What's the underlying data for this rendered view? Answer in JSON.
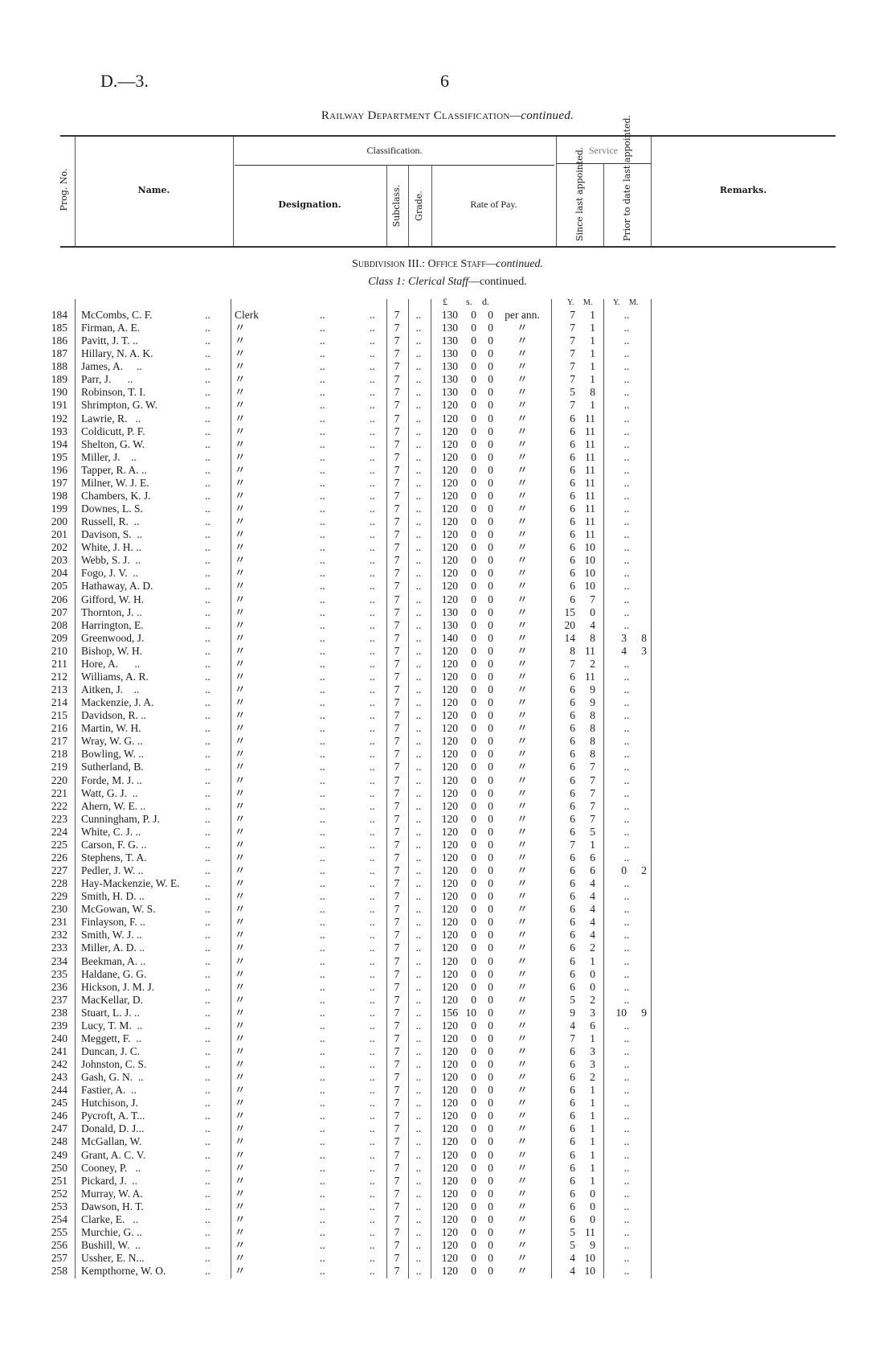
{
  "header": {
    "doc_ref": "D.—3.",
    "page_number": "6",
    "title_main": "Railway Department Classification",
    "title_suffix": "—continued."
  },
  "columns": {
    "prog_no": "Prog. No.",
    "name": "Name.",
    "classification": "Classification.",
    "designation": "Designation.",
    "subclass": "Subclass.",
    "grade": "Grade.",
    "rate_of_pay": "Rate of Pay.",
    "service": "Service",
    "since_last": "Since last appointed.",
    "prior_to_date": "Prior to date last appointed.",
    "remarks": "Remarks."
  },
  "section": {
    "subdivision": "Subdivision III.: Office Staff",
    "subdivision_suffix": "—continued.",
    "class_label": "Class 1: Clerical Staff",
    "class_suffix": "—continued."
  },
  "units": {
    "pounds": "£",
    "shillings": "s.",
    "pence": "d.",
    "years": "Y.",
    "months": "M.",
    "years2": "Y.",
    "months2": "M."
  },
  "row_fields": [
    "prog_no",
    "name",
    "designation",
    "subclass",
    "grade",
    "pounds",
    "shillings",
    "pence",
    "period",
    "since_y",
    "since_m",
    "prior_y",
    "prior_m"
  ],
  "rows": [
    [
      "184",
      "McCombs, C. F.",
      "Clerk",
      "7",
      "..",
      "130",
      "0",
      "0",
      "per ann.",
      "7",
      "1",
      "..",
      ""
    ],
    [
      "185",
      "Firman, A. E.",
      "〃",
      "7",
      "..",
      "130",
      "0",
      "0",
      "〃",
      "7",
      "1",
      "..",
      ""
    ],
    [
      "186",
      "Pavitt, J. T. ..",
      "〃",
      "7",
      "..",
      "130",
      "0",
      "0",
      "〃",
      "7",
      "1",
      "..",
      ""
    ],
    [
      "187",
      "Hillary, N. A. K.",
      "〃",
      "7",
      "..",
      "130",
      "0",
      "0",
      "〃",
      "7",
      "1",
      "..",
      ""
    ],
    [
      "188",
      "James, A.     ..",
      "〃",
      "7",
      "..",
      "130",
      "0",
      "0",
      "〃",
      "7",
      "1",
      "..",
      ""
    ],
    [
      "189",
      "Parr, J.      ..",
      "〃",
      "7",
      "..",
      "130",
      "0",
      "0",
      "〃",
      "7",
      "1",
      "..",
      ""
    ],
    [
      "190",
      "Robinson, T. I.",
      "〃",
      "7",
      "..",
      "130",
      "0",
      "0",
      "〃",
      "5",
      "8",
      "..",
      ""
    ],
    [
      "191",
      "Shrimpton, G. W.",
      "〃",
      "7",
      "..",
      "120",
      "0",
      "0",
      "〃",
      "7",
      "1",
      "..",
      ""
    ],
    [
      "192",
      "Lawrie, R.   ..",
      "〃",
      "7",
      "..",
      "120",
      "0",
      "0",
      "〃",
      "6",
      "11",
      "..",
      ""
    ],
    [
      "193",
      "Coldicutt, P. F.",
      "〃",
      "7",
      "..",
      "120",
      "0",
      "0",
      "〃",
      "6",
      "11",
      "..",
      ""
    ],
    [
      "194",
      "Shelton, G. W.",
      "〃",
      "7",
      "..",
      "120",
      "0",
      "0",
      "〃",
      "6",
      "11",
      "..",
      ""
    ],
    [
      "195",
      "Miller, J.    ..",
      "〃",
      "7",
      "..",
      "120",
      "0",
      "0",
      "〃",
      "6",
      "11",
      "..",
      ""
    ],
    [
      "196",
      "Tapper, R. A. ..",
      "〃",
      "7",
      "..",
      "120",
      "0",
      "0",
      "〃",
      "6",
      "11",
      "..",
      ""
    ],
    [
      "197",
      "Milner, W. J. E.",
      "〃",
      "7",
      "..",
      "120",
      "0",
      "0",
      "〃",
      "6",
      "11",
      "..",
      ""
    ],
    [
      "198",
      "Chambers, K. J.",
      "〃",
      "7",
      "..",
      "120",
      "0",
      "0",
      "〃",
      "6",
      "11",
      "..",
      ""
    ],
    [
      "199",
      "Downes, L. S.",
      "〃",
      "7",
      "..",
      "120",
      "0",
      "0",
      "〃",
      "6",
      "11",
      "..",
      ""
    ],
    [
      "200",
      "Russell, R.  ..",
      "〃",
      "7",
      "..",
      "120",
      "0",
      "0",
      "〃",
      "6",
      "11",
      "..",
      ""
    ],
    [
      "201",
      "Davison, S.  ..",
      "〃",
      "7",
      "..",
      "120",
      "0",
      "0",
      "〃",
      "6",
      "11",
      "..",
      ""
    ],
    [
      "202",
      "White, J. H. ..",
      "〃",
      "7",
      "..",
      "120",
      "0",
      "0",
      "〃",
      "6",
      "10",
      "..",
      ""
    ],
    [
      "203",
      "Webb, S. J.  ..",
      "〃",
      "7",
      "..",
      "120",
      "0",
      "0",
      "〃",
      "6",
      "10",
      "..",
      ""
    ],
    [
      "204",
      "Fogo, J. V.  ..",
      "〃",
      "7",
      "..",
      "120",
      "0",
      "0",
      "〃",
      "6",
      "10",
      "..",
      ""
    ],
    [
      "205",
      "Hathaway, A. D.",
      "〃",
      "7",
      "..",
      "120",
      "0",
      "0",
      "〃",
      "6",
      "10",
      "..",
      ""
    ],
    [
      "206",
      "Gifford, W. H.",
      "〃",
      "7",
      "..",
      "120",
      "0",
      "0",
      "〃",
      "6",
      "7",
      "..",
      ""
    ],
    [
      "207",
      "Thornton, J. ..",
      "〃",
      "7",
      "..",
      "130",
      "0",
      "0",
      "〃",
      "15",
      "0",
      "..",
      ""
    ],
    [
      "208",
      "Harrington, E.",
      "〃",
      "7",
      "..",
      "130",
      "0",
      "0",
      "〃",
      "20",
      "4",
      "..",
      ""
    ],
    [
      "209",
      "Greenwood, J.",
      "〃",
      "7",
      "..",
      "140",
      "0",
      "0",
      "〃",
      "14",
      "8",
      "3",
      "8"
    ],
    [
      "210",
      "Bishop, W. H.",
      "〃",
      "7",
      "..",
      "120",
      "0",
      "0",
      "〃",
      "8",
      "11",
      "4",
      "3"
    ],
    [
      "211",
      "Hore, A.      ..",
      "〃",
      "7",
      "..",
      "120",
      "0",
      "0",
      "〃",
      "7",
      "2",
      "..",
      ""
    ],
    [
      "212",
      "Williams, A. R.",
      "〃",
      "7",
      "..",
      "120",
      "0",
      "0",
      "〃",
      "6",
      "11",
      "..",
      ""
    ],
    [
      "213",
      "Aitken, J.    ..",
      "〃",
      "7",
      "..",
      "120",
      "0",
      "0",
      "〃",
      "6",
      "9",
      "..",
      ""
    ],
    [
      "214",
      "Mackenzie, J. A.",
      "〃",
      "7",
      "..",
      "120",
      "0",
      "0",
      "〃",
      "6",
      "9",
      "..",
      ""
    ],
    [
      "215",
      "Davidson, R. ..",
      "〃",
      "7",
      "..",
      "120",
      "0",
      "0",
      "〃",
      "6",
      "8",
      "..",
      ""
    ],
    [
      "216",
      "Martin, W. H.",
      "〃",
      "7",
      "..",
      "120",
      "0",
      "0",
      "〃",
      "6",
      "8",
      "..",
      ""
    ],
    [
      "217",
      "Wray, W. G. ..",
      "〃",
      "7",
      "..",
      "120",
      "0",
      "0",
      "〃",
      "6",
      "8",
      "..",
      ""
    ],
    [
      "218",
      "Bowling, W. ..",
      "〃",
      "7",
      "..",
      "120",
      "0",
      "0",
      "〃",
      "6",
      "8",
      "..",
      ""
    ],
    [
      "219",
      "Sutherland, B.",
      "〃",
      "7",
      "..",
      "120",
      "0",
      "0",
      "〃",
      "6",
      "7",
      "..",
      ""
    ],
    [
      "220",
      "Forde, M. J. ..",
      "〃",
      "7",
      "..",
      "120",
      "0",
      "0",
      "〃",
      "6",
      "7",
      "..",
      ""
    ],
    [
      "221",
      "Watt, G. J.  ..",
      "〃",
      "7",
      "..",
      "120",
      "0",
      "0",
      "〃",
      "6",
      "7",
      "..",
      ""
    ],
    [
      "222",
      "Ahern, W. E. ..",
      "〃",
      "7",
      "..",
      "120",
      "0",
      "0",
      "〃",
      "6",
      "7",
      "..",
      ""
    ],
    [
      "223",
      "Cunningham, P. J.",
      "〃",
      "7",
      "..",
      "120",
      "0",
      "0",
      "〃",
      "6",
      "7",
      "..",
      ""
    ],
    [
      "224",
      "White, C. J. ..",
      "〃",
      "7",
      "..",
      "120",
      "0",
      "0",
      "〃",
      "6",
      "5",
      "..",
      ""
    ],
    [
      "225",
      "Carson, F. G. ..",
      "〃",
      "7",
      "..",
      "120",
      "0",
      "0",
      "〃",
      "7",
      "1",
      "..",
      ""
    ],
    [
      "226",
      "Stephens, T. A.",
      "〃",
      "7",
      "..",
      "120",
      "0",
      "0",
      "〃",
      "6",
      "6",
      "..",
      ""
    ],
    [
      "227",
      "Pedler, J. W. ..",
      "〃",
      "7",
      "..",
      "120",
      "0",
      "0",
      "〃",
      "6",
      "6",
      "0",
      "2"
    ],
    [
      "228",
      "Hay-Mackenzie, W. E.",
      "〃",
      "7",
      "..",
      "120",
      "0",
      "0",
      "〃",
      "6",
      "4",
      "..",
      ""
    ],
    [
      "229",
      "Smith, H. D. ..",
      "〃",
      "7",
      "..",
      "120",
      "0",
      "0",
      "〃",
      "6",
      "4",
      "..",
      ""
    ],
    [
      "230",
      "McGowan, W. S.",
      "〃",
      "7",
      "..",
      "120",
      "0",
      "0",
      "〃",
      "6",
      "4",
      "..",
      ""
    ],
    [
      "231",
      "Finlayson, F. ..",
      "〃",
      "7",
      "..",
      "120",
      "0",
      "0",
      "〃",
      "6",
      "4",
      "..",
      ""
    ],
    [
      "232",
      "Smith, W. J. ..",
      "〃",
      "7",
      "..",
      "120",
      "0",
      "0",
      "〃",
      "6",
      "4",
      "..",
      ""
    ],
    [
      "233",
      "Miller, A. D. ..",
      "〃",
      "7",
      "..",
      "120",
      "0",
      "0",
      "〃",
      "6",
      "2",
      "..",
      ""
    ],
    [
      "234",
      "Beekman, A. ..",
      "〃",
      "7",
      "..",
      "120",
      "0",
      "0",
      "〃",
      "6",
      "1",
      "..",
      ""
    ],
    [
      "235",
      "Haldane, G. G.",
      "〃",
      "7",
      "..",
      "120",
      "0",
      "0",
      "〃",
      "6",
      "0",
      "..",
      ""
    ],
    [
      "236",
      "Hickson, J. M. J.",
      "〃",
      "7",
      "..",
      "120",
      "0",
      "0",
      "〃",
      "6",
      "0",
      "..",
      ""
    ],
    [
      "237",
      "MacKellar, D.",
      "〃",
      "7",
      "..",
      "120",
      "0",
      "0",
      "〃",
      "5",
      "2",
      "..",
      ""
    ],
    [
      "238",
      "Stuart, L. J. ..",
      "〃",
      "7",
      "..",
      "156",
      "10",
      "0",
      "〃",
      "9",
      "3",
      "10",
      "9"
    ],
    [
      "239",
      "Lucy, T. M.  ..",
      "〃",
      "7",
      "..",
      "120",
      "0",
      "0",
      "〃",
      "4",
      "6",
      "..",
      ""
    ],
    [
      "240",
      "Meggett, F.  ..",
      "〃",
      "7",
      "..",
      "120",
      "0",
      "0",
      "〃",
      "7",
      "1",
      "..",
      ""
    ],
    [
      "241",
      "Duncan, J. C.",
      "〃",
      "7",
      "..",
      "120",
      "0",
      "0",
      "〃",
      "6",
      "3",
      "..",
      ""
    ],
    [
      "242",
      "Johnston, C. S.",
      "〃",
      "7",
      "..",
      "120",
      "0",
      "0",
      "〃",
      "6",
      "3",
      "..",
      ""
    ],
    [
      "243",
      "Gash, G. N.  ..",
      "〃",
      "7",
      "..",
      "120",
      "0",
      "0",
      "〃",
      "6",
      "2",
      "..",
      ""
    ],
    [
      "244",
      "Fastier, A.  ..",
      "〃",
      "7",
      "..",
      "120",
      "0",
      "0",
      "〃",
      "6",
      "1",
      "..",
      ""
    ],
    [
      "245",
      "Hutchison, J.",
      "〃",
      "7",
      "..",
      "120",
      "0",
      "0",
      "〃",
      "6",
      "1",
      "..",
      ""
    ],
    [
      "246",
      "Pycroft, A. T...",
      "〃",
      "7",
      "..",
      "120",
      "0",
      "0",
      "〃",
      "6",
      "1",
      "..",
      ""
    ],
    [
      "247",
      "Donald, D. J...",
      "〃",
      "7",
      "..",
      "120",
      "0",
      "0",
      "〃",
      "6",
      "1",
      "..",
      ""
    ],
    [
      "248",
      "McGallan, W.",
      "〃",
      "7",
      "..",
      "120",
      "0",
      "0",
      "〃",
      "6",
      "1",
      "..",
      ""
    ],
    [
      "249",
      "Grant, A. C. V.",
      "〃",
      "7",
      "..",
      "120",
      "0",
      "0",
      "〃",
      "6",
      "1",
      "..",
      ""
    ],
    [
      "250",
      "Cooney, P.   ..",
      "〃",
      "7",
      "..",
      "120",
      "0",
      "0",
      "〃",
      "6",
      "1",
      "..",
      ""
    ],
    [
      "251",
      "Pickard, J.  ..",
      "〃",
      "7",
      "..",
      "120",
      "0",
      "0",
      "〃",
      "6",
      "1",
      "..",
      ""
    ],
    [
      "252",
      "Murray, W. A.",
      "〃",
      "7",
      "..",
      "120",
      "0",
      "0",
      "〃",
      "6",
      "0",
      "..",
      ""
    ],
    [
      "253",
      "Dawson, H. T.",
      "〃",
      "7",
      "..",
      "120",
      "0",
      "0",
      "〃",
      "6",
      "0",
      "..",
      ""
    ],
    [
      "254",
      "Clarke, E.   ..",
      "〃",
      "7",
      "..",
      "120",
      "0",
      "0",
      "〃",
      "6",
      "0",
      "..",
      ""
    ],
    [
      "255",
      "Murchie, G. ..",
      "〃",
      "7",
      "..",
      "120",
      "0",
      "0",
      "〃",
      "5",
      "11",
      "..",
      ""
    ],
    [
      "256",
      "Bushill, W.  ..",
      "〃",
      "7",
      "..",
      "120",
      "0",
      "0",
      "〃",
      "5",
      "9",
      "..",
      ""
    ],
    [
      "257",
      "Ussher, E. N...",
      "〃",
      "7",
      "..",
      "120",
      "0",
      "0",
      "〃",
      "4",
      "10",
      "..",
      ""
    ],
    [
      "258",
      "Kempthorne, W. O.",
      "〃",
      "7",
      "..",
      "120",
      "0",
      "0",
      "〃",
      "4",
      "10",
      "..",
      ""
    ]
  ]
}
